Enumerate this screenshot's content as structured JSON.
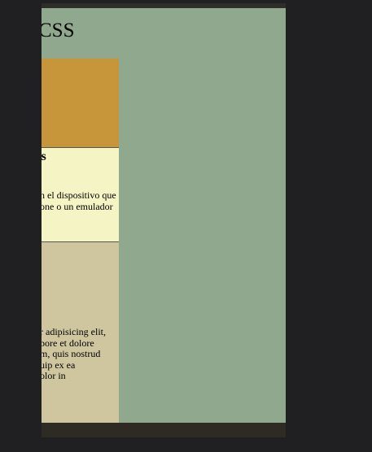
{
  "header": {
    "title": "CSS"
  },
  "sections": [
    {
      "heading": "ies",
      "lines": [
        "n el dispositivo que",
        "one o un emulador"
      ]
    },
    {
      "lines": [
        "r adipisicing elit,",
        "bore et dolore",
        "m, quis nostrud",
        "uip ex ea",
        "olor in"
      ]
    }
  ]
}
